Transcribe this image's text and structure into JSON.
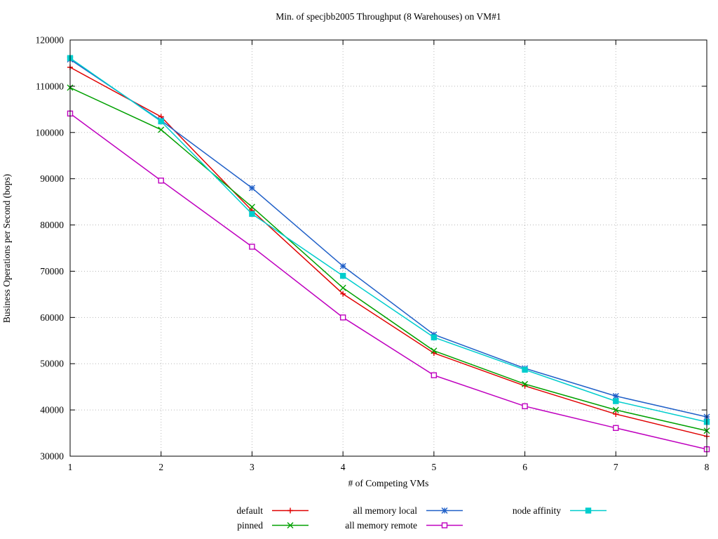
{
  "chart_data": {
    "type": "line",
    "title": "Min. of specjbb2005 Throughput (8 Warehouses) on VM#1",
    "xlabel": "# of Competing VMs",
    "ylabel": "Business Operations per Second (bops)",
    "x": [
      1,
      2,
      3,
      4,
      5,
      6,
      7,
      8
    ],
    "xlim": [
      1,
      8
    ],
    "ylim": [
      30000,
      120000
    ],
    "xticks": [
      1,
      2,
      3,
      4,
      5,
      6,
      7,
      8
    ],
    "yticks": [
      30000,
      40000,
      50000,
      60000,
      70000,
      80000,
      90000,
      100000,
      110000,
      120000
    ],
    "grid": true,
    "grid_color": "#b8b8b8",
    "border_color": "#000000",
    "series": [
      {
        "name": "default",
        "color": "#e00000",
        "marker": "plus",
        "values": [
          114100,
          103400,
          83100,
          65100,
          52300,
          45200,
          39100,
          34300
        ]
      },
      {
        "name": "pinned",
        "color": "#00a000",
        "marker": "cross",
        "values": [
          109700,
          100600,
          83900,
          66400,
          52800,
          45600,
          40000,
          35500
        ]
      },
      {
        "name": "all memory local",
        "color": "#2060c8",
        "marker": "star",
        "values": [
          115800,
          102600,
          88000,
          71100,
          56300,
          49000,
          43000,
          38500
        ]
      },
      {
        "name": "all memory remote",
        "color": "#bf00bf",
        "marker": "square-open",
        "values": [
          104100,
          89600,
          75300,
          60000,
          47500,
          40800,
          36100,
          31500
        ]
      },
      {
        "name": "node affinity",
        "color": "#00cdcd",
        "marker": "square-filled",
        "values": [
          116100,
          102400,
          82400,
          69000,
          55700,
          48700,
          41900,
          37400
        ]
      }
    ],
    "legend": {
      "position": "bottom",
      "rows": [
        [
          "default",
          "all memory local",
          "node affinity"
        ],
        [
          "pinned",
          "all memory remote",
          ""
        ]
      ]
    }
  }
}
